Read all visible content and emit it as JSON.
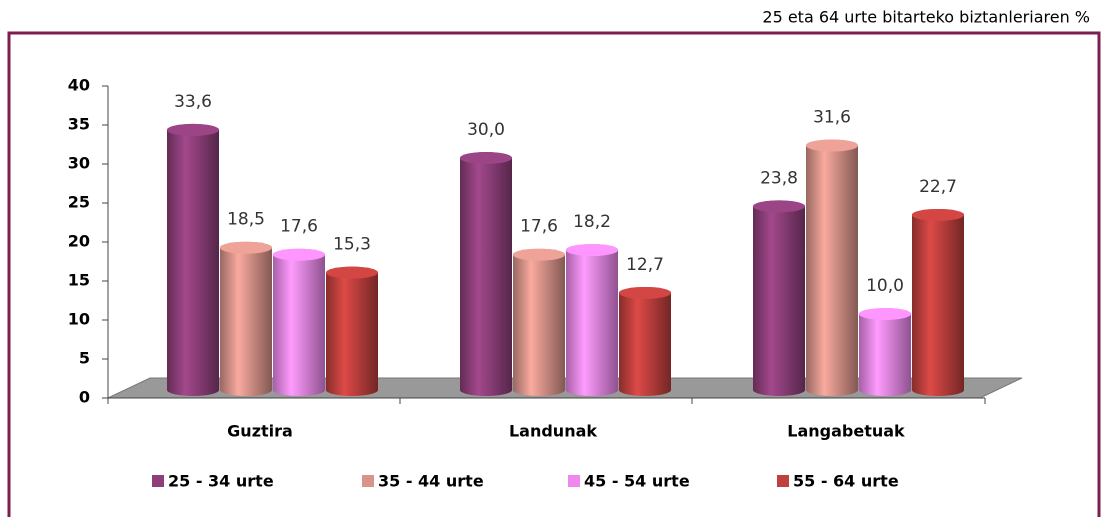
{
  "chart_data": {
    "type": "bar",
    "subtitle": "25 eta 64 urte bitarteko biztanleriaren %",
    "categories": [
      "Guztira",
      "Landunak",
      "Langabetuak"
    ],
    "series": [
      {
        "name": "25 - 34 urte",
        "color": "#8e3f7a",
        "values": [
          33.6,
          30.0,
          23.8
        ],
        "value_labels": [
          "33,6",
          "30,0",
          "23,8"
        ]
      },
      {
        "name": "35 - 44 urte",
        "color": "#d9948a",
        "values": [
          18.5,
          17.6,
          31.6
        ],
        "value_labels": [
          "18,5",
          "17,6",
          "31,6"
        ]
      },
      {
        "name": "45 - 54 urte",
        "color": "#ee88ee",
        "values": [
          17.6,
          18.2,
          10.0
        ],
        "value_labels": [
          "17,6",
          "18,2",
          "10,0"
        ]
      },
      {
        "name": "55 - 64 urte",
        "color": "#c0403e",
        "values": [
          15.3,
          12.7,
          22.7
        ],
        "value_labels": [
          "15,3",
          "12,7",
          "22,7"
        ]
      }
    ],
    "ylim": [
      0,
      40
    ],
    "yticks": [
      0,
      5,
      10,
      15,
      20,
      25,
      30,
      35,
      40
    ],
    "legend": "bottom"
  }
}
